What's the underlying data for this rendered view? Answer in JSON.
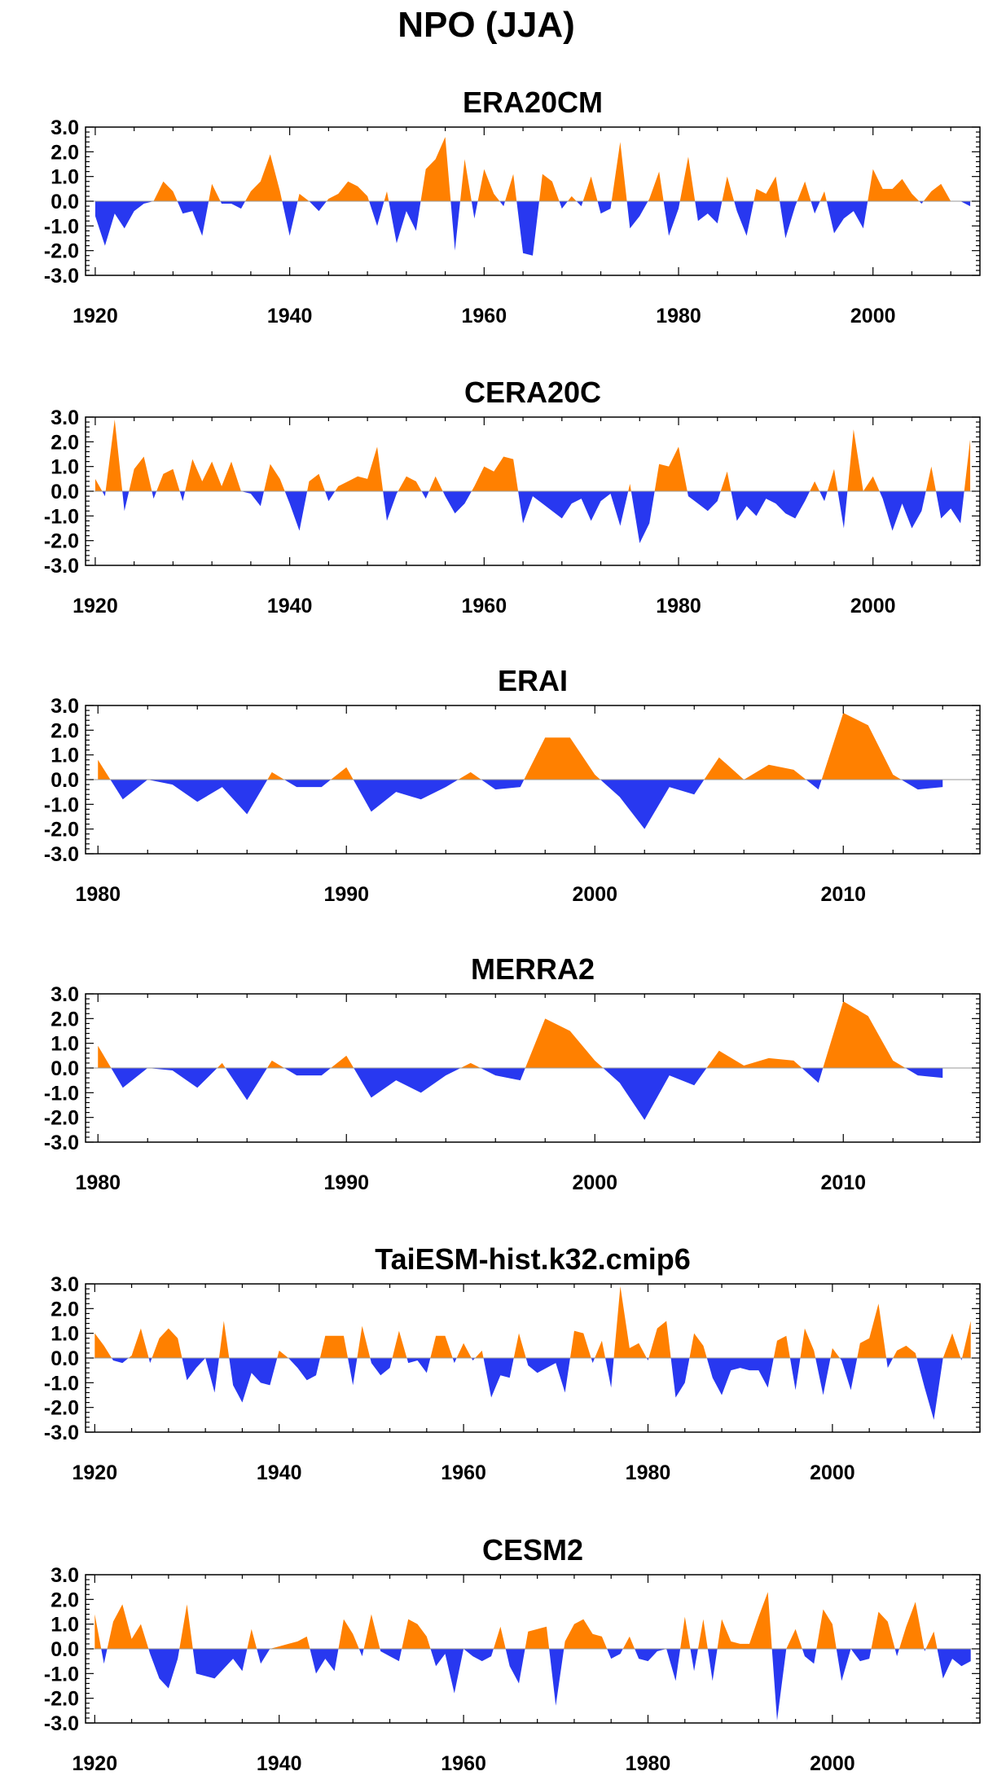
{
  "figure": {
    "title": "NPO (JJA)"
  },
  "colors": {
    "positive": "#ff8000",
    "negative": "#2838f0",
    "frame": "#000000"
  },
  "chart_data": [
    {
      "type": "area",
      "title": "ERA20CM",
      "xlim": [
        1919,
        2011
      ],
      "ylim": [
        -3,
        3
      ],
      "yticks": [
        -3,
        -2,
        -1,
        0,
        1,
        2,
        3
      ],
      "ytick_labels": [
        "-3.0",
        "-2.0",
        "-1.0",
        "0.0",
        "1.0",
        "2.0",
        "3.0"
      ],
      "xticks": [
        1920,
        1940,
        1960,
        1980,
        2000
      ],
      "x": [
        1920,
        1921,
        1922,
        1923,
        1924,
        1925,
        1926,
        1927,
        1928,
        1929,
        1930,
        1931,
        1932,
        1933,
        1934,
        1935,
        1936,
        1937,
        1938,
        1939,
        1940,
        1941,
        1942,
        1943,
        1944,
        1945,
        1946,
        1947,
        1948,
        1949,
        1950,
        1951,
        1952,
        1953,
        1954,
        1955,
        1956,
        1957,
        1958,
        1959,
        1960,
        1961,
        1962,
        1963,
        1964,
        1965,
        1966,
        1967,
        1968,
        1969,
        1970,
        1971,
        1972,
        1973,
        1974,
        1975,
        1976,
        1977,
        1978,
        1979,
        1980,
        1981,
        1982,
        1983,
        1984,
        1985,
        1986,
        1987,
        1988,
        1989,
        1990,
        1991,
        1992,
        1993,
        1994,
        1995,
        1996,
        1997,
        1998,
        1999,
        2000,
        2001,
        2002,
        2003,
        2004,
        2005,
        2006,
        2007,
        2008,
        2009,
        2010
      ],
      "values": [
        -0.6,
        -1.8,
        -0.5,
        -1.1,
        -0.4,
        -0.1,
        0.0,
        0.8,
        0.4,
        -0.5,
        -0.4,
        -1.4,
        0.7,
        -0.1,
        -0.1,
        -0.3,
        0.4,
        0.8,
        1.9,
        0.4,
        -1.4,
        0.3,
        0.0,
        -0.4,
        0.1,
        0.3,
        0.8,
        0.6,
        0.2,
        -1.0,
        0.4,
        -1.7,
        -0.4,
        -1.2,
        1.3,
        1.7,
        2.6,
        -2.0,
        1.7,
        -0.7,
        1.3,
        0.3,
        -0.2,
        1.1,
        -2.1,
        -2.2,
        1.1,
        0.8,
        -0.3,
        0.2,
        -0.2,
        1.0,
        -0.5,
        -0.3,
        2.4,
        -1.1,
        -0.6,
        0.1,
        1.2,
        -1.4,
        -0.3,
        1.8,
        -0.8,
        -0.5,
        -0.9,
        1.0,
        -0.4,
        -1.4,
        0.5,
        0.3,
        1.0,
        -1.5,
        -0.2,
        0.8,
        -0.5,
        0.4,
        -1.3,
        -0.7,
        -0.4,
        -1.1,
        1.3,
        0.5,
        0.5,
        0.9,
        0.3,
        -0.1,
        0.4,
        0.7,
        0.0,
        0.0,
        -0.2
      ]
    },
    {
      "type": "area",
      "title": "CERA20C",
      "xlim": [
        1919,
        2011
      ],
      "ylim": [
        -3,
        3
      ],
      "yticks": [
        -3,
        -2,
        -1,
        0,
        1,
        2,
        3
      ],
      "ytick_labels": [
        "-3.0",
        "-2.0",
        "-1.0",
        "0.0",
        "1.0",
        "2.0",
        "3.0"
      ],
      "xticks": [
        1920,
        1940,
        1960,
        1980,
        2000
      ],
      "x": [
        1920,
        1921,
        1922,
        1923,
        1924,
        1925,
        1926,
        1927,
        1928,
        1929,
        1930,
        1931,
        1932,
        1933,
        1934,
        1935,
        1936,
        1937,
        1938,
        1939,
        1940,
        1941,
        1942,
        1943,
        1944,
        1945,
        1946,
        1947,
        1948,
        1949,
        1950,
        1951,
        1952,
        1953,
        1954,
        1955,
        1956,
        1957,
        1958,
        1959,
        1960,
        1961,
        1962,
        1963,
        1964,
        1965,
        1966,
        1967,
        1968,
        1969,
        1970,
        1971,
        1972,
        1973,
        1974,
        1975,
        1976,
        1977,
        1978,
        1979,
        1980,
        1981,
        1982,
        1983,
        1984,
        1985,
        1986,
        1987,
        1988,
        1989,
        1990,
        1991,
        1992,
        1993,
        1994,
        1995,
        1996,
        1997,
        1998,
        1999,
        2000,
        2001,
        2002,
        2003,
        2004,
        2005,
        2006,
        2007,
        2008,
        2009,
        2010
      ],
      "values": [
        0.5,
        -0.2,
        2.9,
        -0.8,
        0.9,
        1.4,
        -0.3,
        0.7,
        0.9,
        -0.4,
        1.3,
        0.4,
        1.2,
        0.2,
        1.2,
        0.0,
        -0.1,
        -0.6,
        1.1,
        0.5,
        -0.5,
        -1.6,
        0.4,
        0.7,
        -0.4,
        0.2,
        0.4,
        0.6,
        0.5,
        1.8,
        -1.2,
        -0.1,
        0.6,
        0.4,
        -0.3,
        0.6,
        -0.2,
        -0.9,
        -0.5,
        0.2,
        1.0,
        0.8,
        1.4,
        1.3,
        -1.3,
        -0.2,
        -0.5,
        -0.8,
        -1.1,
        -0.5,
        -0.3,
        -1.2,
        -0.4,
        -0.1,
        -1.4,
        0.3,
        -2.1,
        -1.3,
        1.1,
        1.0,
        1.8,
        -0.2,
        -0.5,
        -0.8,
        -0.4,
        0.8,
        -1.2,
        -0.6,
        -1.0,
        -0.3,
        -0.5,
        -0.9,
        -1.1,
        -0.4,
        0.4,
        -0.4,
        0.9,
        -1.5,
        2.5,
        0.0,
        0.6,
        -0.3,
        -1.6,
        -0.5,
        -1.5,
        -0.8,
        1.0,
        -1.1,
        -0.7,
        -1.3,
        2.1
      ]
    },
    {
      "type": "area",
      "title": "ERAI",
      "xlim": [
        1979.5,
        2015.5
      ],
      "ylim": [
        -3,
        3
      ],
      "yticks": [
        -3,
        -2,
        -1,
        0,
        1,
        2,
        3
      ],
      "ytick_labels": [
        "-3.0",
        "-2.0",
        "-1.0",
        "0.0",
        "1.0",
        "2.0",
        "3.0"
      ],
      "xticks": [
        1980,
        1990,
        2000,
        2010
      ],
      "x": [
        1980,
        1981,
        1982,
        1983,
        1984,
        1985,
        1986,
        1987,
        1988,
        1989,
        1990,
        1991,
        1992,
        1993,
        1994,
        1995,
        1996,
        1997,
        1998,
        1999,
        2000,
        2001,
        2002,
        2003,
        2004,
        2005,
        2006,
        2007,
        2008,
        2009,
        2010,
        2011,
        2012,
        2013,
        2014
      ],
      "values": [
        0.8,
        -0.8,
        0.0,
        -0.2,
        -0.9,
        -0.3,
        -1.4,
        0.3,
        -0.3,
        -0.3,
        0.5,
        -1.3,
        -0.5,
        -0.8,
        -0.3,
        0.3,
        -0.4,
        -0.3,
        1.7,
        1.7,
        0.2,
        -0.7,
        -2.0,
        -0.3,
        -0.6,
        0.9,
        0.0,
        0.6,
        0.4,
        -0.4,
        2.7,
        2.2,
        0.2,
        -0.4,
        -0.3
      ]
    },
    {
      "type": "area",
      "title": "MERRA2",
      "xlim": [
        1979.5,
        2015.5
      ],
      "ylim": [
        -3,
        3
      ],
      "yticks": [
        -3,
        -2,
        -1,
        0,
        1,
        2,
        3
      ],
      "ytick_labels": [
        "-3.0",
        "-2.0",
        "-1.0",
        "0.0",
        "1.0",
        "2.0",
        "3.0"
      ],
      "xticks": [
        1980,
        1990,
        2000,
        2010
      ],
      "x": [
        1980,
        1981,
        1982,
        1983,
        1984,
        1985,
        1986,
        1987,
        1988,
        1989,
        1990,
        1991,
        1992,
        1993,
        1994,
        1995,
        1996,
        1997,
        1998,
        1999,
        2000,
        2001,
        2002,
        2003,
        2004,
        2005,
        2006,
        2007,
        2008,
        2009,
        2010,
        2011,
        2012,
        2013,
        2014
      ],
      "values": [
        0.9,
        -0.8,
        0.0,
        -0.1,
        -0.8,
        0.2,
        -1.3,
        0.3,
        -0.3,
        -0.3,
        0.5,
        -1.2,
        -0.5,
        -1.0,
        -0.3,
        0.2,
        -0.3,
        -0.5,
        2.0,
        1.5,
        0.3,
        -0.6,
        -2.1,
        -0.3,
        -0.7,
        0.7,
        0.1,
        0.4,
        0.3,
        -0.6,
        2.7,
        2.1,
        0.3,
        -0.3,
        -0.4
      ]
    },
    {
      "type": "area",
      "title": "TaiESM-hist.k32.cmip6",
      "xlim": [
        1919,
        2016
      ],
      "ylim": [
        -3,
        3
      ],
      "yticks": [
        -3,
        -2,
        -1,
        0,
        1,
        2,
        3
      ],
      "ytick_labels": [
        "-3.0",
        "-2.0",
        "-1.0",
        "0.0",
        "1.0",
        "2.0",
        "3.0"
      ],
      "xticks": [
        1920,
        1940,
        1960,
        1980,
        2000
      ],
      "x": [
        1920,
        1921,
        1922,
        1923,
        1924,
        1925,
        1926,
        1927,
        1928,
        1929,
        1930,
        1931,
        1932,
        1933,
        1934,
        1935,
        1936,
        1937,
        1938,
        1939,
        1940,
        1941,
        1942,
        1943,
        1944,
        1945,
        1946,
        1947,
        1948,
        1949,
        1950,
        1951,
        1952,
        1953,
        1954,
        1955,
        1956,
        1957,
        1958,
        1959,
        1960,
        1961,
        1962,
        1963,
        1964,
        1965,
        1966,
        1967,
        1968,
        1969,
        1970,
        1971,
        1972,
        1973,
        1974,
        1975,
        1976,
        1977,
        1978,
        1979,
        1980,
        1981,
        1982,
        1983,
        1984,
        1985,
        1986,
        1987,
        1988,
        1989,
        1990,
        1991,
        1992,
        1993,
        1994,
        1995,
        1996,
        1997,
        1998,
        1999,
        2000,
        2001,
        2002,
        2003,
        2004,
        2005,
        2006,
        2007,
        2008,
        2009,
        2010,
        2011,
        2012,
        2013,
        2014,
        2015
      ],
      "values": [
        1.0,
        0.5,
        -0.1,
        -0.2,
        0.1,
        1.2,
        -0.2,
        0.8,
        1.2,
        0.8,
        -0.9,
        -0.4,
        0.0,
        -1.4,
        1.5,
        -1.1,
        -1.8,
        -0.6,
        -1.0,
        -1.1,
        0.3,
        0.0,
        -0.4,
        -0.9,
        -0.7,
        0.9,
        0.9,
        0.9,
        -1.1,
        1.3,
        -0.2,
        -0.7,
        -0.4,
        1.1,
        -0.2,
        -0.1,
        -0.6,
        0.9,
        0.9,
        -0.2,
        0.6,
        -0.1,
        0.3,
        -1.6,
        -0.7,
        -0.8,
        1.0,
        -0.3,
        -0.6,
        -0.4,
        -0.2,
        -1.4,
        1.1,
        1.0,
        -0.2,
        0.7,
        -1.2,
        2.9,
        0.4,
        0.6,
        -0.1,
        1.2,
        1.5,
        -1.6,
        -1.0,
        1.0,
        0.5,
        -0.8,
        -1.5,
        -0.5,
        -0.4,
        -0.5,
        -0.5,
        -1.2,
        0.7,
        0.9,
        -1.3,
        1.2,
        0.3,
        -1.5,
        0.4,
        -0.1,
        -1.3,
        0.6,
        0.8,
        2.2,
        -0.4,
        0.3,
        0.5,
        0.2,
        -1.2,
        -2.5,
        0.0,
        1.0,
        -0.1,
        1.5
      ]
    },
    {
      "type": "area",
      "title": "CESM2",
      "xlim": [
        1919,
        2016
      ],
      "ylim": [
        -3,
        3
      ],
      "yticks": [
        -3,
        -2,
        -1,
        0,
        1,
        2,
        3
      ],
      "ytick_labels": [
        "-3.0",
        "-2.0",
        "-1.0",
        "0.0",
        "1.0",
        "2.0",
        "3.0"
      ],
      "xticks": [
        1920,
        1940,
        1960,
        1980,
        2000
      ],
      "x": [
        1920,
        1921,
        1922,
        1923,
        1924,
        1925,
        1926,
        1927,
        1928,
        1929,
        1930,
        1931,
        1932,
        1933,
        1934,
        1935,
        1936,
        1937,
        1938,
        1939,
        1940,
        1941,
        1942,
        1943,
        1944,
        1945,
        1946,
        1947,
        1948,
        1949,
        1950,
        1951,
        1952,
        1953,
        1954,
        1955,
        1956,
        1957,
        1958,
        1959,
        1960,
        1961,
        1962,
        1963,
        1964,
        1965,
        1966,
        1967,
        1968,
        1969,
        1970,
        1971,
        1972,
        1973,
        1974,
        1975,
        1976,
        1977,
        1978,
        1979,
        1980,
        1981,
        1982,
        1983,
        1984,
        1985,
        1986,
        1987,
        1988,
        1989,
        1990,
        1991,
        1992,
        1993,
        1994,
        1995,
        1996,
        1997,
        1998,
        1999,
        2000,
        2001,
        2002,
        2003,
        2004,
        2005,
        2006,
        2007,
        2008,
        2009,
        2010,
        2011,
        2012,
        2013,
        2014,
        2015
      ],
      "values": [
        1.4,
        -0.6,
        1.1,
        1.8,
        0.4,
        1.0,
        -0.2,
        -1.2,
        -1.6,
        -0.4,
        1.8,
        -1.0,
        -1.1,
        -1.2,
        -0.8,
        -0.4,
        -0.9,
        0.8,
        -0.6,
        0.0,
        0.1,
        0.2,
        0.3,
        0.5,
        -1.0,
        -0.4,
        -0.9,
        1.2,
        0.6,
        -0.3,
        1.4,
        -0.1,
        -0.3,
        -0.5,
        1.2,
        1.0,
        0.5,
        -0.7,
        -0.2,
        -1.8,
        0.0,
        -0.3,
        -0.5,
        -0.3,
        0.9,
        -0.7,
        -1.4,
        0.7,
        0.8,
        0.9,
        -2.3,
        0.3,
        1.0,
        1.2,
        0.6,
        0.5,
        -0.4,
        -0.2,
        0.5,
        -0.4,
        -0.5,
        -0.1,
        0.0,
        -1.3,
        1.3,
        -0.9,
        1.2,
        -1.3,
        1.2,
        0.3,
        0.2,
        0.2,
        1.3,
        2.3,
        -2.9,
        0.0,
        0.8,
        -0.3,
        -0.6,
        1.6,
        1.0,
        -1.3,
        0.0,
        -0.5,
        -0.4,
        1.5,
        1.1,
        -0.3,
        0.9,
        1.9,
        -0.1,
        0.7,
        -1.2,
        -0.4,
        -0.7,
        -0.5
      ]
    }
  ]
}
